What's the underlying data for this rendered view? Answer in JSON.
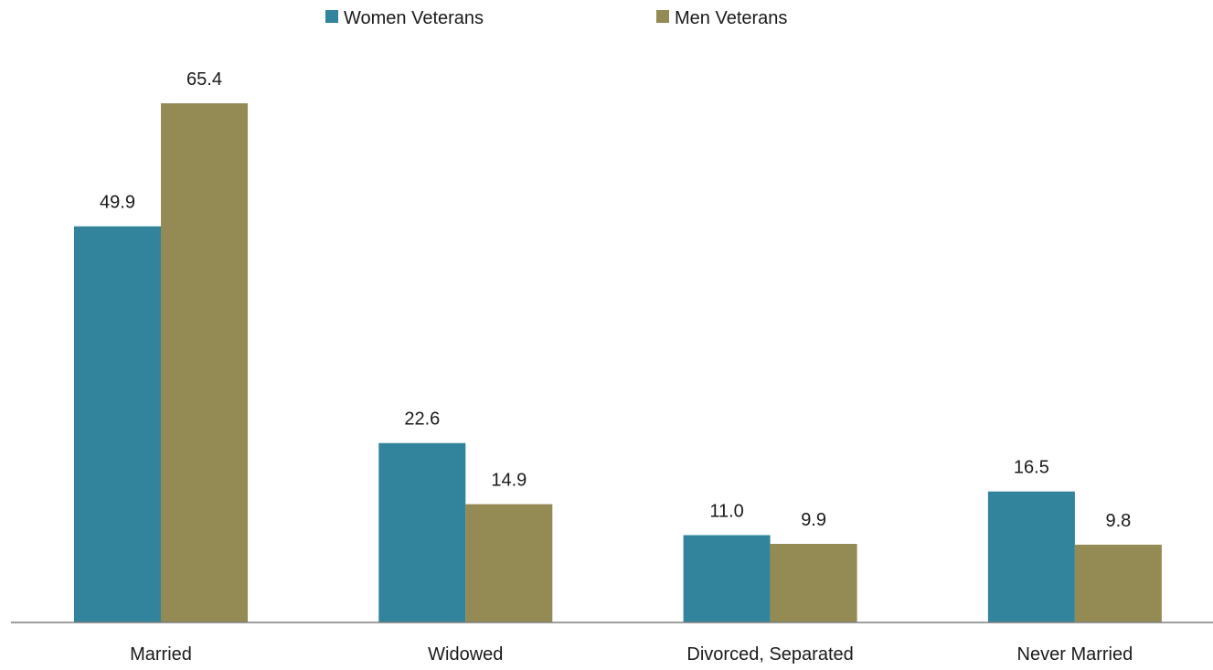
{
  "chart_data": {
    "type": "bar",
    "categories": [
      "Married",
      "Widowed",
      "Divorced, Separated",
      "Never Married"
    ],
    "series": [
      {
        "name": "Women Veterans",
        "color": "#31849b",
        "values": [
          49.9,
          22.6,
          11.0,
          16.5
        ]
      },
      {
        "name": "Men Veterans",
        "color": "#948a54",
        "values": [
          65.4,
          14.9,
          9.9,
          9.8
        ]
      }
    ],
    "value_format": "0.0",
    "ylim": [
      0,
      70
    ],
    "y_axis_visible": false,
    "grid": false,
    "legend_position": "top-center",
    "data_labels": true
  }
}
